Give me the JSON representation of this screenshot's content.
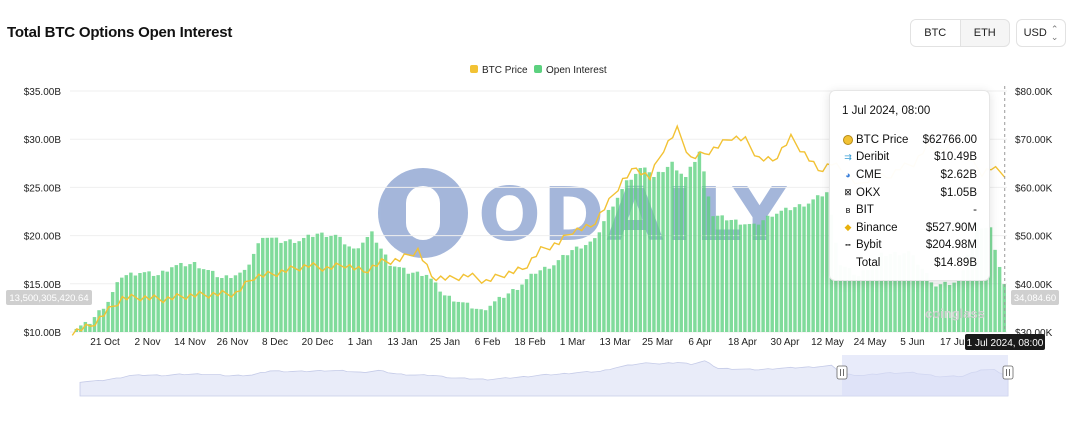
{
  "header": {
    "title": "Total BTC Options Open Interest",
    "tabs": [
      {
        "label": "BTC",
        "active": true
      },
      {
        "label": "ETH",
        "active": false
      }
    ],
    "currency": "USD"
  },
  "colors": {
    "btc_price": "#f2c234",
    "open_interest": "#5cd17f",
    "navigator_fill": "#e9ecf9",
    "navigator_selected": "#d9def6"
  },
  "chart_data": {
    "type": "bar",
    "legend": [
      {
        "name": "BTC Price",
        "color": "#f2c234"
      },
      {
        "name": "Open Interest",
        "color": "#5cd17f"
      }
    ],
    "legend_position": "top-center",
    "y_left": {
      "ticks": [
        "$10.00B",
        "$15.00B",
        "$20.00B",
        "$25.00B",
        "$30.00B",
        "$35.00B"
      ],
      "range": [
        10,
        35
      ],
      "unit": "B USD"
    },
    "y_right": {
      "ticks": [
        "$30.00K",
        "$40.00K",
        "$50.00K",
        "$60.00K",
        "$70.00K",
        "$80.00K"
      ],
      "range": [
        30,
        80
      ],
      "unit": "K USD"
    },
    "x_ticks": [
      "21 Oct",
      "2 Nov",
      "14 Nov",
      "26 Nov",
      "8 Dec",
      "20 Dec",
      "1 Jan",
      "13 Jan",
      "25 Jan",
      "6 Feb",
      "18 Feb",
      "1 Mar",
      "13 Mar",
      "25 Mar",
      "6 Apr",
      "18 Apr",
      "30 Apr",
      "12 May",
      "24 May",
      "5 Jun",
      "17 Jun"
    ],
    "series": [
      {
        "name": "Open Interest",
        "type": "bar",
        "color": "#5cd17f",
        "anchors": [
          [
            0,
            10.2
          ],
          [
            4,
            11
          ],
          [
            8,
            13.2
          ],
          [
            11,
            15.8
          ],
          [
            15,
            16.2
          ],
          [
            19,
            15.9
          ],
          [
            22,
            16.8
          ],
          [
            27,
            17.1
          ],
          [
            33,
            15.6
          ],
          [
            38,
            16.2
          ],
          [
            42,
            20.0
          ],
          [
            46,
            19.4
          ],
          [
            50,
            19.5
          ],
          [
            54,
            20.2
          ],
          [
            58,
            20.0
          ],
          [
            62,
            18.5
          ],
          [
            66,
            20.2
          ],
          [
            70,
            17.1
          ],
          [
            74,
            16.2
          ],
          [
            78,
            16.0
          ],
          [
            82,
            13.8
          ],
          [
            86,
            13.0
          ],
          [
            90,
            12.2
          ],
          [
            94,
            13.4
          ],
          [
            98,
            14.6
          ],
          [
            102,
            16.2
          ],
          [
            106,
            17.0
          ],
          [
            110,
            18.5
          ],
          [
            115,
            19.5
          ],
          [
            118,
            22.5
          ],
          [
            122,
            25.5
          ],
          [
            126,
            27.3
          ],
          [
            128,
            26.0
          ],
          [
            132,
            27.5
          ],
          [
            135,
            26.0
          ],
          [
            138,
            28.7
          ],
          [
            141,
            22.1
          ],
          [
            146,
            21.5
          ],
          [
            150,
            21.0
          ],
          [
            154,
            22.2
          ],
          [
            158,
            22.8
          ],
          [
            162,
            23.4
          ],
          [
            166,
            24.5
          ],
          [
            169,
            17.0
          ],
          [
            173,
            15.8
          ],
          [
            178,
            18.0
          ],
          [
            184,
            18.3
          ],
          [
            190,
            14.8
          ],
          [
            195,
            15.2
          ],
          [
            199,
            21.0
          ],
          [
            202,
            20.7
          ],
          [
            205,
            14.89
          ]
        ]
      },
      {
        "name": "BTC Price",
        "type": "line",
        "color": "#f2c234",
        "anchors": [
          [
            0,
            30.0
          ],
          [
            4,
            31.2
          ],
          [
            8,
            34.5
          ],
          [
            11,
            37.0
          ],
          [
            15,
            37.2
          ],
          [
            20,
            36.8
          ],
          [
            25,
            37.5
          ],
          [
            30,
            37.8
          ],
          [
            36,
            38.0
          ],
          [
            40,
            41.5
          ],
          [
            44,
            42.0
          ],
          [
            48,
            43.0
          ],
          [
            52,
            43.8
          ],
          [
            56,
            43.2
          ],
          [
            60,
            44.0
          ],
          [
            64,
            42.5
          ],
          [
            68,
            44.5
          ],
          [
            72,
            45.0
          ],
          [
            76,
            47.0
          ],
          [
            79,
            41.5
          ],
          [
            83,
            41.0
          ],
          [
            87,
            41.8
          ],
          [
            91,
            40.5
          ],
          [
            95,
            42.0
          ],
          [
            99,
            43.0
          ],
          [
            103,
            47.0
          ],
          [
            107,
            48.5
          ],
          [
            110,
            51.0
          ],
          [
            114,
            51.8
          ],
          [
            118,
            57.0
          ],
          [
            121,
            61.5
          ],
          [
            124,
            64.0
          ],
          [
            127,
            62.0
          ],
          [
            130,
            68.0
          ],
          [
            133,
            72.0
          ],
          [
            136,
            66.0
          ],
          [
            139,
            67.0
          ],
          [
            142,
            68.5
          ],
          [
            145,
            70.5
          ],
          [
            148,
            69.8
          ],
          [
            151,
            66.0
          ],
          [
            154,
            65.5
          ],
          [
            158,
            70.3
          ],
          [
            161,
            67.0
          ],
          [
            164,
            63.5
          ],
          [
            167,
            65.0
          ],
          [
            170,
            63.0
          ],
          [
            173,
            60.2
          ],
          [
            176,
            62.5
          ],
          [
            179,
            62.0
          ],
          [
            182,
            64.0
          ],
          [
            185,
            65.0
          ],
          [
            188,
            68.5
          ],
          [
            191,
            67.5
          ],
          [
            194,
            69.0
          ],
          [
            197,
            66.0
          ],
          [
            200,
            63.0
          ],
          [
            202,
            64.0
          ],
          [
            205,
            62.8
          ]
        ]
      }
    ],
    "crosshair_labels": {
      "date": "1 Jul 2024, 08:00",
      "left": "13,500,305,420.64",
      "right": "34,084.60"
    },
    "tooltip": {
      "date": "1 Jul 2024, 08:00",
      "rows": [
        {
          "icon": "btc-price-dot-icon",
          "glyph": "●",
          "name": "BTC Price",
          "value": "$62766.00"
        },
        {
          "icon": "deribit-icon",
          "glyph": "⇉",
          "name": "Deribit",
          "value": "$10.49B"
        },
        {
          "icon": "cme-icon",
          "glyph": "◕",
          "name": "CME",
          "value": "$2.62B"
        },
        {
          "icon": "okx-icon",
          "glyph": "⊠",
          "name": "OKX",
          "value": "$1.05B"
        },
        {
          "icon": "bit-icon",
          "glyph": "ʙ",
          "name": "BIT",
          "value": "-"
        },
        {
          "icon": "binance-icon",
          "glyph": "◆",
          "name": "Binance",
          "value": "$527.90M"
        },
        {
          "icon": "bybit-icon",
          "glyph": "╍",
          "name": "Bybit",
          "value": "$204.98M"
        },
        {
          "icon": "",
          "glyph": "",
          "name": "Total",
          "value": "$14.89B"
        }
      ]
    },
    "watermark": "ODAILY",
    "brand_watermark": "coinglass"
  }
}
